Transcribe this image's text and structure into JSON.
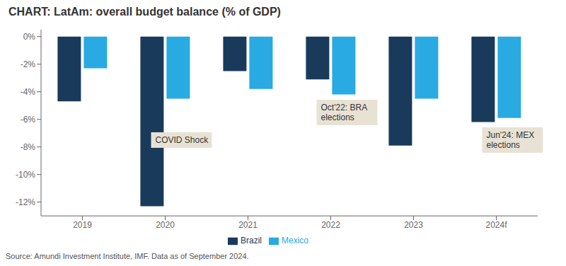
{
  "chart_data": {
    "type": "bar",
    "title": "CHART: LatAm: overall budget balance (% of GDP)",
    "categories": [
      "2019",
      "2020",
      "2021",
      "2022",
      "2023",
      "2024f"
    ],
    "series": [
      {
        "name": "Brazil",
        "color": "#1a3a5c",
        "values": [
          -4.7,
          -12.3,
          -2.5,
          -3.1,
          -7.9,
          -6.2
        ]
      },
      {
        "name": "Mexico",
        "color": "#29aae2",
        "values": [
          -2.3,
          -4.5,
          -3.8,
          -4.2,
          -4.5,
          -5.9
        ]
      }
    ],
    "ylim": [
      -13,
      0.5
    ],
    "yticks": [
      {
        "value": 0,
        "label": "0%"
      },
      {
        "value": -2,
        "label": "-2%"
      },
      {
        "value": -4,
        "label": "-4%"
      },
      {
        "value": -6,
        "label": "-6%"
      },
      {
        "value": -8,
        "label": "-8%"
      },
      {
        "value": -10,
        "label": "-10%"
      },
      {
        "value": -12,
        "label": "-12%"
      }
    ],
    "grid": false,
    "legend": "bottom",
    "annotations": [
      {
        "text": "COVID Shock",
        "x": "2020",
        "y": -7.5
      },
      {
        "text": "Oct'22: BRA\nelections",
        "x": "2022",
        "y": -5.5
      },
      {
        "text": "Jun'24: MEX\nelections",
        "x": "2024f",
        "y": -7.5
      }
    ],
    "source": "Source: Amundi Investment Institute, IMF. Data as of September 2024."
  }
}
